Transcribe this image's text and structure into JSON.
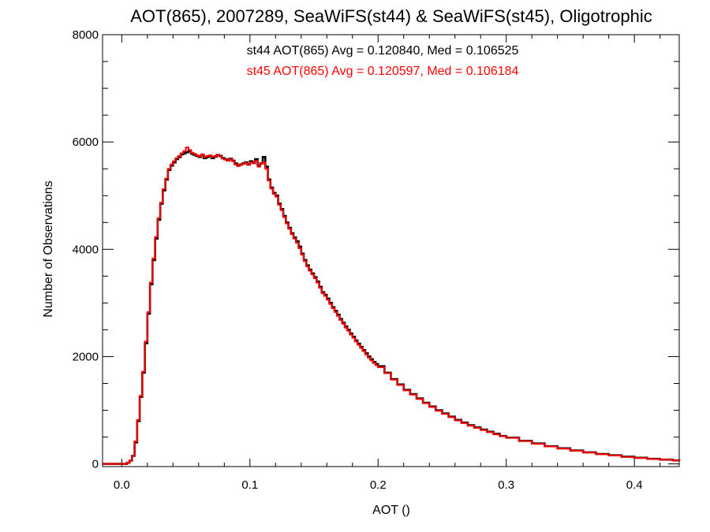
{
  "chart_data": {
    "type": "line",
    "step": true,
    "title": "AOT(865), 2007289, SeaWiFS(st44) & SeaWiFS(st45), Oligotrophic",
    "xlabel": "AOT ()",
    "ylabel": "Number of Observations",
    "xlim": [
      -0.015,
      0.435
    ],
    "ylim": [
      -50,
      8000
    ],
    "xticks": [
      0.0,
      0.1,
      0.2,
      0.3,
      0.4
    ],
    "xtick_labels": [
      "0.0",
      "0.1",
      "0.2",
      "0.3",
      "0.4"
    ],
    "yticks": [
      0,
      2000,
      4000,
      6000,
      8000
    ],
    "ytick_labels": [
      "0",
      "2000",
      "4000",
      "6000",
      "8000"
    ],
    "grid": false,
    "annotations": [
      {
        "text": "st44 AOT(865) Avg = 0.120840, Med = 0.106525",
        "color": "#000000"
      },
      {
        "text": "st45 AOT(865) Avg = 0.120597, Med = 0.106184",
        "color": "#ff0000"
      }
    ],
    "series": [
      {
        "color": "#000000",
        "x": [
          -0.015,
          0.0,
          0.004,
          0.006,
          0.008,
          0.01,
          0.012,
          0.014,
          0.016,
          0.018,
          0.02,
          0.022,
          0.024,
          0.026,
          0.028,
          0.03,
          0.032,
          0.034,
          0.036,
          0.038,
          0.04,
          0.042,
          0.044,
          0.046,
          0.048,
          0.05,
          0.052,
          0.054,
          0.056,
          0.058,
          0.06,
          0.062,
          0.064,
          0.066,
          0.068,
          0.07,
          0.072,
          0.074,
          0.076,
          0.078,
          0.08,
          0.082,
          0.084,
          0.086,
          0.088,
          0.09,
          0.092,
          0.094,
          0.096,
          0.098,
          0.1,
          0.102,
          0.104,
          0.106,
          0.108,
          0.11,
          0.112,
          0.114,
          0.116,
          0.118,
          0.12,
          0.122,
          0.124,
          0.126,
          0.128,
          0.13,
          0.132,
          0.134,
          0.136,
          0.138,
          0.14,
          0.142,
          0.144,
          0.146,
          0.148,
          0.15,
          0.152,
          0.154,
          0.156,
          0.158,
          0.16,
          0.162,
          0.164,
          0.166,
          0.168,
          0.17,
          0.172,
          0.174,
          0.176,
          0.178,
          0.18,
          0.182,
          0.184,
          0.186,
          0.188,
          0.19,
          0.192,
          0.194,
          0.196,
          0.198,
          0.2,
          0.205,
          0.21,
          0.215,
          0.22,
          0.225,
          0.23,
          0.235,
          0.24,
          0.245,
          0.25,
          0.255,
          0.26,
          0.265,
          0.27,
          0.275,
          0.28,
          0.285,
          0.29,
          0.295,
          0.3,
          0.31,
          0.32,
          0.33,
          0.34,
          0.35,
          0.36,
          0.37,
          0.38,
          0.39,
          0.4,
          0.41,
          0.42,
          0.43,
          0.435
        ],
        "y": [
          0,
          0,
          20,
          60,
          150,
          400,
          800,
          1250,
          1700,
          2250,
          2800,
          3350,
          3800,
          4200,
          4550,
          4850,
          5100,
          5300,
          5480,
          5560,
          5620,
          5680,
          5720,
          5770,
          5790,
          5810,
          5830,
          5780,
          5760,
          5740,
          5720,
          5760,
          5700,
          5720,
          5740,
          5700,
          5730,
          5760,
          5740,
          5700,
          5680,
          5660,
          5690,
          5650,
          5600,
          5560,
          5580,
          5600,
          5620,
          5580,
          5640,
          5610,
          5680,
          5560,
          5600,
          5720,
          5540,
          5300,
          5150,
          5050,
          5000,
          4850,
          4750,
          4620,
          4500,
          4400,
          4300,
          4220,
          4150,
          4050,
          3920,
          3800,
          3700,
          3620,
          3550,
          3480,
          3400,
          3300,
          3200,
          3150,
          3080,
          3000,
          2920,
          2850,
          2780,
          2700,
          2630,
          2560,
          2500,
          2430,
          2370,
          2300,
          2240,
          2180,
          2120,
          2060,
          2000,
          1950,
          1900,
          1860,
          1820,
          1700,
          1580,
          1480,
          1380,
          1300,
          1220,
          1140,
          1070,
          1000,
          940,
          880,
          820,
          770,
          720,
          680,
          640,
          600,
          560,
          520,
          490,
          430,
          380,
          330,
          290,
          250,
          215,
          185,
          160,
          135,
          115,
          95,
          80,
          65,
          55
        ]
      },
      {
        "color": "#ff0000",
        "x": [
          -0.015,
          0.0,
          0.004,
          0.006,
          0.008,
          0.01,
          0.012,
          0.014,
          0.016,
          0.018,
          0.02,
          0.022,
          0.024,
          0.026,
          0.028,
          0.03,
          0.032,
          0.034,
          0.036,
          0.038,
          0.04,
          0.042,
          0.044,
          0.046,
          0.048,
          0.05,
          0.052,
          0.054,
          0.056,
          0.058,
          0.06,
          0.062,
          0.064,
          0.066,
          0.068,
          0.07,
          0.072,
          0.074,
          0.076,
          0.078,
          0.08,
          0.082,
          0.084,
          0.086,
          0.088,
          0.09,
          0.092,
          0.094,
          0.096,
          0.098,
          0.1,
          0.102,
          0.104,
          0.106,
          0.108,
          0.11,
          0.112,
          0.114,
          0.116,
          0.118,
          0.12,
          0.122,
          0.124,
          0.126,
          0.128,
          0.13,
          0.132,
          0.134,
          0.136,
          0.138,
          0.14,
          0.142,
          0.144,
          0.146,
          0.148,
          0.15,
          0.152,
          0.154,
          0.156,
          0.158,
          0.16,
          0.162,
          0.164,
          0.166,
          0.168,
          0.17,
          0.172,
          0.174,
          0.176,
          0.178,
          0.18,
          0.182,
          0.184,
          0.186,
          0.188,
          0.19,
          0.192,
          0.194,
          0.196,
          0.198,
          0.2,
          0.205,
          0.21,
          0.215,
          0.22,
          0.225,
          0.23,
          0.235,
          0.24,
          0.245,
          0.25,
          0.255,
          0.26,
          0.265,
          0.27,
          0.275,
          0.28,
          0.285,
          0.29,
          0.295,
          0.3,
          0.31,
          0.32,
          0.33,
          0.34,
          0.35,
          0.36,
          0.37,
          0.38,
          0.39,
          0.4,
          0.41,
          0.42,
          0.43,
          0.435
        ],
        "y": [
          0,
          0,
          20,
          60,
          150,
          420,
          820,
          1270,
          1720,
          2280,
          2830,
          3380,
          3830,
          4230,
          4580,
          4870,
          5120,
          5320,
          5500,
          5580,
          5640,
          5700,
          5740,
          5790,
          5830,
          5900,
          5850,
          5800,
          5780,
          5750,
          5730,
          5770,
          5720,
          5740,
          5750,
          5720,
          5740,
          5760,
          5730,
          5690,
          5670,
          5650,
          5680,
          5640,
          5580,
          5550,
          5570,
          5590,
          5610,
          5570,
          5620,
          5600,
          5650,
          5540,
          5590,
          5620,
          5500,
          5280,
          5130,
          5030,
          4980,
          4830,
          4730,
          4600,
          4480,
          4380,
          4280,
          4200,
          4120,
          4020,
          3900,
          3780,
          3680,
          3600,
          3530,
          3460,
          3380,
          3280,
          3180,
          3130,
          3060,
          2980,
          2900,
          2830,
          2760,
          2680,
          2610,
          2540,
          2480,
          2410,
          2350,
          2280,
          2220,
          2160,
          2100,
          2040,
          1980,
          1930,
          1880,
          1840,
          1800,
          1690,
          1570,
          1470,
          1370,
          1290,
          1210,
          1130,
          1060,
          990,
          930,
          870,
          810,
          760,
          710,
          670,
          630,
          590,
          550,
          515,
          485,
          425,
          375,
          325,
          285,
          245,
          210,
          180,
          155,
          130,
          110,
          92,
          78,
          62,
          52
        ]
      }
    ]
  }
}
